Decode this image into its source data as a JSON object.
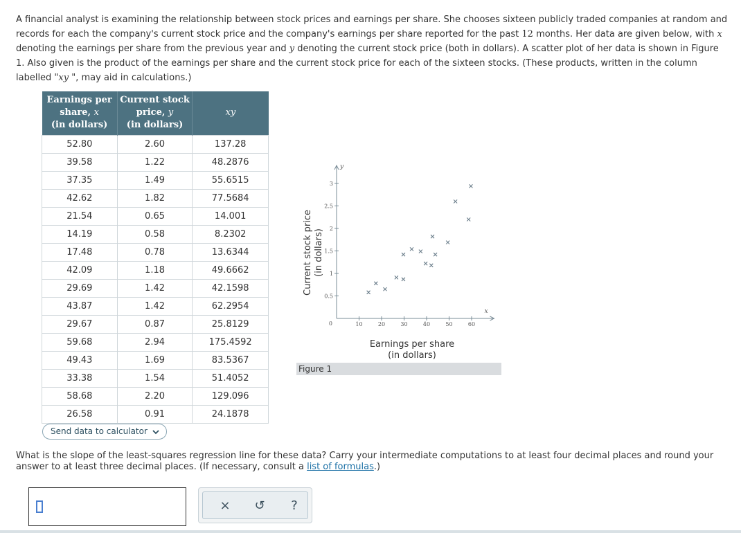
{
  "intro": {
    "p1": "A financial analyst is examining the relationship between stock prices and earnings per share. She chooses sixteen publicly traded companies at random and records for each the company's current stock price and the company's earnings per share reported for the past ",
    "months_num": "12",
    "p2": " months. Her data are given below, with ",
    "x_sym": "x",
    "p3": " denoting the earnings per share from the previous year and ",
    "y_sym": "y",
    "p4": " denoting the current stock price (both in dollars). A scatter plot of her data is shown in Figure 1. Also given is the product of the earnings per share and the current stock price for each of the sixteen stocks. (These products, written in the column labelled \"",
    "xy_sym": "xy",
    "p5": " \", may aid in calculations.)"
  },
  "table": {
    "headers": [
      {
        "l1": "Earnings per",
        "l2": "share, ",
        "sym": "x",
        "l3": "(in dollars)"
      },
      {
        "l1": "Current stock",
        "l2": "price, ",
        "sym": "y",
        "l3": "(in dollars)"
      },
      {
        "sym": "xy"
      }
    ],
    "rows": [
      [
        "52.80",
        "2.60",
        "137.28"
      ],
      [
        "39.58",
        "1.22",
        "48.2876"
      ],
      [
        "37.35",
        "1.49",
        "55.6515"
      ],
      [
        "42.62",
        "1.82",
        "77.5684"
      ],
      [
        "21.54",
        "0.65",
        "14.001"
      ],
      [
        "14.19",
        "0.58",
        "8.2302"
      ],
      [
        "17.48",
        "0.78",
        "13.6344"
      ],
      [
        "42.09",
        "1.18",
        "49.6662"
      ],
      [
        "29.69",
        "1.42",
        "42.1598"
      ],
      [
        "43.87",
        "1.42",
        "62.2954"
      ],
      [
        "29.67",
        "0.87",
        "25.8129"
      ],
      [
        "59.68",
        "2.94",
        "175.4592"
      ],
      [
        "49.43",
        "1.69",
        "83.5367"
      ],
      [
        "33.38",
        "1.54",
        "51.4052"
      ],
      [
        "58.68",
        "2.20",
        "129.096"
      ],
      [
        "26.58",
        "0.91",
        "24.1878"
      ]
    ]
  },
  "send_button": "Send data to calculator",
  "figure": {
    "label": "Figure 1",
    "xlabel_l1": "Earnings per share",
    "xlabel_l2": "(in dollars)",
    "ylabel_l1": "Current stock price",
    "ylabel_l2": "(in dollars)",
    "x_axis_sym": "x",
    "y_axis_sym": "y"
  },
  "chart_data": {
    "type": "scatter",
    "x": [
      52.8,
      39.58,
      37.35,
      42.62,
      21.54,
      14.19,
      17.48,
      42.09,
      29.69,
      43.87,
      29.67,
      59.68,
      49.43,
      33.38,
      58.68,
      26.58
    ],
    "y": [
      2.6,
      1.22,
      1.49,
      1.82,
      0.65,
      0.58,
      0.78,
      1.18,
      1.42,
      1.42,
      0.87,
      2.94,
      1.69,
      1.54,
      2.2,
      0.91
    ],
    "xticks": [
      "10",
      "20",
      "30",
      "40",
      "50",
      "60"
    ],
    "yticks": [
      "0.5",
      "1",
      "1.5",
      "2",
      "2.5",
      "3"
    ],
    "origin_label": "0",
    "xlim": [
      0,
      70
    ],
    "ylim": [
      0,
      3.4
    ],
    "xlabel": "Earnings per share (in dollars)",
    "ylabel": "Current stock price (in dollars)",
    "title": "",
    "marker": "x"
  },
  "question": {
    "text": "What is the slope of the least-squares regression line for these data? Carry your intermediate computations to at least four decimal places and round your answer to at least three decimal places. (If necessary, consult a ",
    "link": "list of formulas",
    "end": ".)"
  },
  "tools": {
    "clear": "×",
    "undo": "↺",
    "help": "?"
  },
  "colors": {
    "table_header": "#4d7281",
    "link": "#1a6fa5",
    "marker": "#6a7d8a"
  }
}
